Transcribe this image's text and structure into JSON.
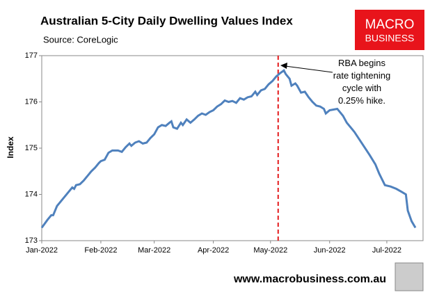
{
  "chart_data": {
    "type": "line",
    "title": "Australian 5-City Daily Dwelling Values Index",
    "subtitle": "Source: CoreLogic",
    "y_label": "Index",
    "annotation": "RBA begins rate tightening cycle with 0.25% hike.",
    "event_x": 124,
    "event_color": "#e41a1c",
    "logo": [
      "MACRO",
      "BUSINESS"
    ],
    "footer": "www.macrobusiness.com.au",
    "x": [
      0,
      3,
      5,
      6,
      8,
      11,
      14,
      16,
      17,
      18,
      20,
      22,
      24,
      26,
      28,
      30,
      31,
      33,
      35,
      37,
      40,
      42,
      44,
      46,
      47,
      49,
      51,
      53,
      55,
      57,
      59,
      61,
      63,
      65,
      67,
      68,
      69,
      71,
      73,
      74,
      76,
      78,
      80,
      82,
      84,
      86,
      88,
      90,
      92,
      94,
      96,
      98,
      100,
      102,
      104,
      106,
      108,
      110,
      112,
      113,
      115,
      117,
      119,
      121,
      123,
      125,
      127,
      128,
      130,
      131,
      133,
      134,
      136,
      138,
      140,
      142,
      144,
      146,
      148,
      149,
      151,
      155,
      158,
      160,
      164,
      168,
      172,
      175,
      177,
      180,
      183,
      186,
      189,
      191,
      192,
      194,
      196
    ],
    "series": [
      {
        "name": "Index",
        "color": "#4f81bd",
        "values": [
          173.28,
          173.45,
          173.55,
          173.55,
          173.75,
          173.9,
          174.05,
          174.15,
          174.12,
          174.2,
          174.22,
          174.3,
          174.4,
          174.5,
          174.58,
          174.68,
          174.72,
          174.75,
          174.9,
          174.95,
          174.95,
          174.92,
          175.02,
          175.1,
          175.05,
          175.12,
          175.15,
          175.1,
          175.12,
          175.22,
          175.3,
          175.45,
          175.5,
          175.48,
          175.55,
          175.58,
          175.45,
          175.42,
          175.55,
          175.5,
          175.62,
          175.55,
          175.62,
          175.7,
          175.75,
          175.72,
          175.78,
          175.82,
          175.9,
          175.95,
          176.03,
          176.0,
          176.02,
          175.98,
          176.08,
          176.05,
          176.1,
          176.12,
          176.22,
          176.15,
          176.25,
          176.28,
          176.38,
          176.45,
          176.55,
          176.62,
          176.68,
          176.6,
          176.5,
          176.35,
          176.4,
          176.35,
          176.2,
          176.22,
          176.1,
          176.0,
          175.92,
          175.9,
          175.85,
          175.75,
          175.82,
          175.85,
          175.7,
          175.55,
          175.35,
          175.1,
          174.85,
          174.65,
          174.45,
          174.2,
          174.17,
          174.12,
          174.05,
          174.0,
          173.65,
          173.42,
          173.28
        ]
      }
    ],
    "xlim": [
      0,
      200
    ],
    "xticks": [
      {
        "value": 0,
        "label": "Jan-2022"
      },
      {
        "value": 31,
        "label": "Feb-2022"
      },
      {
        "value": 59,
        "label": "Mar-2022"
      },
      {
        "value": 90,
        "label": "Apr-2022"
      },
      {
        "value": 120,
        "label": "May-2022"
      },
      {
        "value": 151,
        "label": "Jun-2022"
      },
      {
        "value": 181,
        "label": "Jul-2022"
      }
    ],
    "ylim": [
      173,
      177
    ],
    "yticks": [
      173,
      174,
      175,
      176,
      177
    ]
  }
}
